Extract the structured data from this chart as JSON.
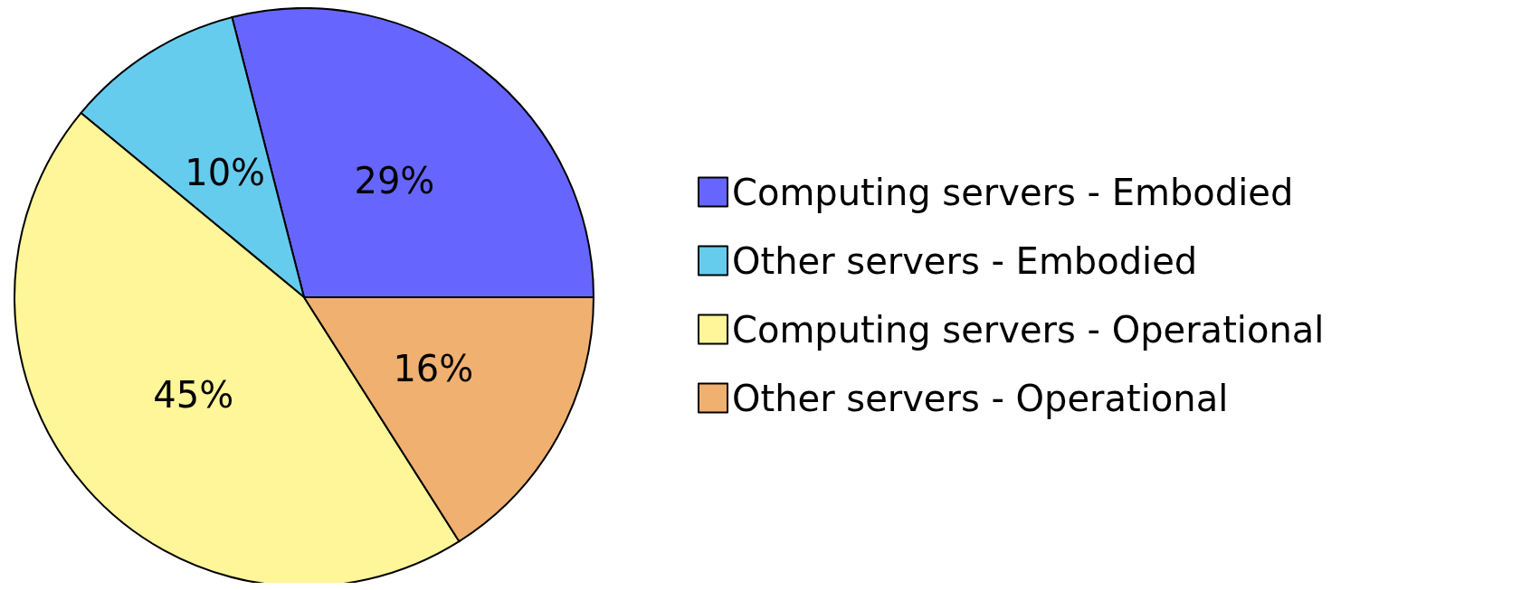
{
  "chart_data": {
    "type": "pie",
    "categories": [
      "Computing servers - Embodied",
      "Other servers - Embodied",
      "Computing servers - Operational",
      "Other servers - Operational"
    ],
    "values": [
      29,
      10,
      45,
      16
    ],
    "colors": [
      "#6666ff",
      "#66ccee",
      "#fff599",
      "#f0b070"
    ],
    "value_labels": [
      "29%",
      "10%",
      "45%",
      "16%"
    ],
    "legend": "right"
  }
}
